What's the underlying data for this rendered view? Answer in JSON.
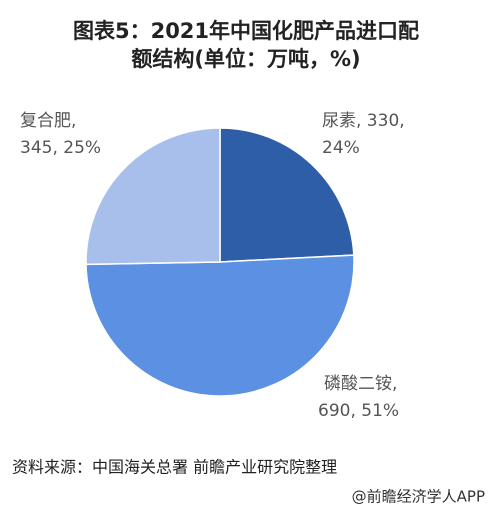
{
  "chart_data": {
    "type": "pie",
    "title": [
      "图表5：2021年中国化肥产品进口配",
      "额结构(单位：万吨，%)"
    ],
    "values": [
      330,
      690,
      345
    ],
    "value_labels": [
      [
        "尿素, 330,",
        "24%"
      ],
      [
        "磷酸二铵,",
        "690, 51%"
      ],
      [
        "复合肥,",
        "345, 25%"
      ]
    ],
    "colors": [
      "#2f5ea9",
      "#5b90e2",
      "#a8bfeb"
    ],
    "source": "资料来源：中国海关总署 前瞻产业研究院整理",
    "watermark": "@前瞻经济学人APP"
  }
}
